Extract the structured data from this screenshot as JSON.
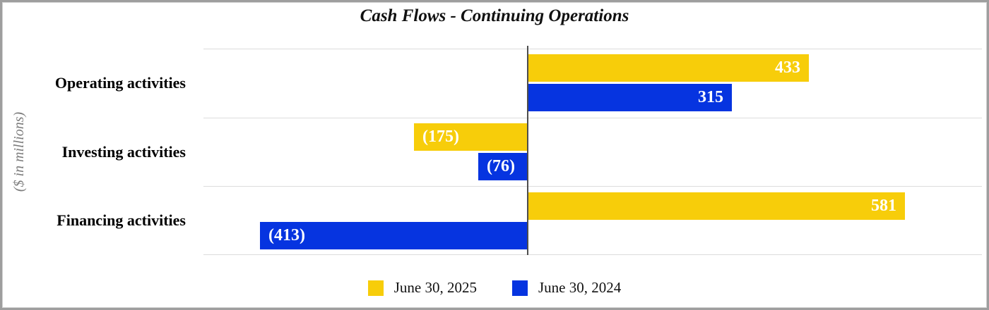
{
  "title": "Cash Flows - Continuing Operations",
  "axis": {
    "y_label": "($ in millions)"
  },
  "legend": {
    "items": [
      {
        "label": "June 30, 2025",
        "color": "#f7cd0a"
      },
      {
        "label": "June 30, 2024",
        "color": "#0634e0"
      }
    ]
  },
  "colors": {
    "series_2025": "#f7cd0a",
    "series_2024": "#0634e0",
    "zero_line": "#4d4d4d",
    "gridline": "#dcdcdc",
    "value_label_text": "#ffffff",
    "axis_label_text": "#7c7c7c"
  },
  "chart_data": {
    "type": "bar",
    "orientation": "horizontal",
    "title": "Cash Flows - Continuing Operations",
    "ylabel": "($ in millions)",
    "categories": [
      "Operating activities",
      "Investing activities",
      "Financing activities"
    ],
    "series": [
      {
        "name": "June 30, 2025",
        "color": "#f7cd0a",
        "values": [
          433,
          -175,
          581
        ],
        "data_labels": [
          "433",
          "(175)",
          "581"
        ]
      },
      {
        "name": "June 30, 2024",
        "color": "#0634e0",
        "values": [
          315,
          -76,
          -413
        ],
        "data_labels": [
          "315",
          "(76)",
          "(413)"
        ]
      }
    ],
    "xlim": [
      -500,
      700
    ],
    "grid": "horizontal category separators only",
    "zero_axis_line": true,
    "negative_format": "parentheses",
    "data_labels_inside_bar_end": true,
    "legend_position": "bottom-center"
  }
}
